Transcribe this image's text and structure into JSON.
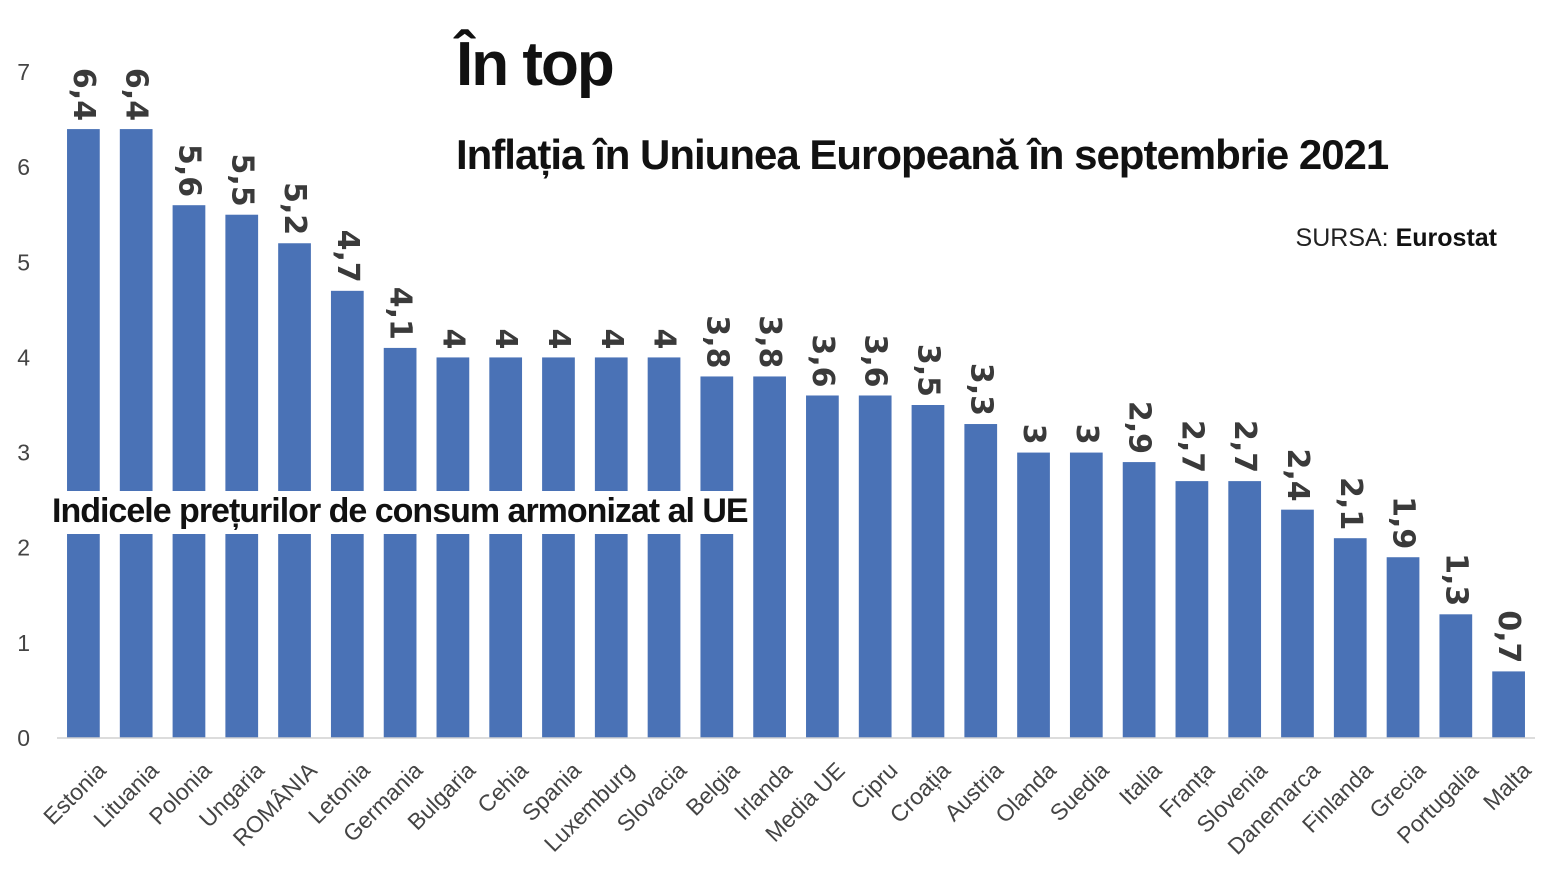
{
  "title": "În top",
  "subtitle": "Inflația în Uniunea Europeană în septembrie 2021",
  "source": {
    "label": "SURSA:",
    "name": "Eurostat"
  },
  "annotation": "Indicele prețurilor de consum armonizat al UE",
  "colors": {
    "bar": "#4a72b6",
    "label": "#3a3a3a",
    "axis": "#d0d0d0",
    "tick": "#444444"
  },
  "chart_data": {
    "type": "bar",
    "categories": [
      "Estonia",
      "Lituania",
      "Polonia",
      "Ungaria",
      "ROMÂNIA",
      "Letonia",
      "Germania",
      "Bulgaria",
      "Cehia",
      "Spania",
      "Luxemburg",
      "Slovacia",
      "Belgia",
      "Irlanda",
      "Media UE",
      "Cipru",
      "Croația",
      "Austria",
      "Olanda",
      "Suedia",
      "Italia",
      "Franța",
      "Slovenia",
      "Danemarca",
      "Finlanda",
      "Grecia",
      "Portugalia",
      "Malta"
    ],
    "values": [
      6.4,
      6.4,
      5.6,
      5.5,
      5.2,
      4.7,
      4.1,
      4,
      4,
      4,
      4,
      4,
      3.8,
      3.8,
      3.6,
      3.6,
      3.5,
      3.3,
      3,
      3,
      2.9,
      2.7,
      2.7,
      2.4,
      2.1,
      1.9,
      1.3,
      0.7
    ],
    "value_labels": [
      "6,4",
      "6,4",
      "5,6",
      "5,5",
      "5,2",
      "4,7",
      "4,1",
      "4",
      "4",
      "4",
      "4",
      "4",
      "3,8",
      "3,8",
      "3,6",
      "3,6",
      "3,5",
      "3,3",
      "3",
      "3",
      "2,9",
      "2,7",
      "2,7",
      "2,4",
      "2,1",
      "1,9",
      "1,3",
      "0,7"
    ],
    "y_ticks": [
      "0",
      "1",
      "2",
      "3",
      "4",
      "5",
      "6",
      "7"
    ],
    "ylim": [
      0,
      7
    ],
    "grid": false,
    "legend": "none"
  }
}
